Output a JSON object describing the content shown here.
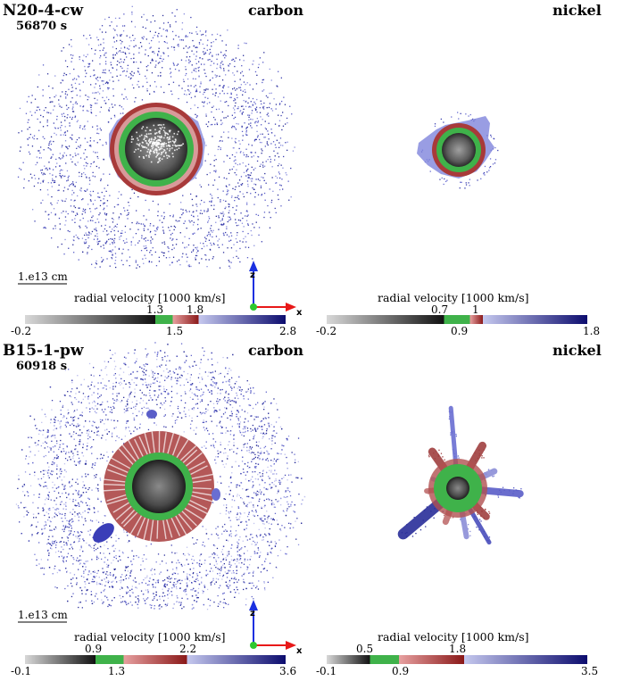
{
  "colors": {
    "gray_start": "#d8d8d8",
    "gray_end": "#111111",
    "green": "#3fb24a",
    "red_light": "#e7a0a0",
    "red_dark": "#8a1818",
    "blue_light": "#c5c8ee",
    "blue_dark": "#0c0c6e",
    "axis_z": "#1a30e0",
    "axis_x": "#e81818",
    "axis_origin": "#2ec82e"
  },
  "panels": [
    {
      "model": "N20-4-cw",
      "time": "56870 s",
      "element": "carbon",
      "scale_bar": "1.e13 cm",
      "axes": {
        "z": "z",
        "x": "x"
      },
      "colorbar": {
        "title": "radial velocity [1000 km/s]",
        "min": -0.2,
        "max": 2.8,
        "boundaries": [
          1.3,
          1.5,
          1.8
        ],
        "ticks_above": [
          "1.3",
          "1.8"
        ],
        "ticks_below": [
          "-0.2",
          "1.5",
          "2.8"
        ]
      }
    },
    {
      "element": "nickel",
      "colorbar": {
        "title": "radial velocity [1000 km/s]",
        "min": -0.2,
        "max": 1.8,
        "boundaries": [
          0.7,
          0.9,
          1.0
        ],
        "ticks_above": [
          "0.7",
          "1"
        ],
        "ticks_below": [
          "-0.2",
          "0.9",
          "1.8"
        ]
      }
    },
    {
      "model": "B15-1-pw",
      "time": "60918 s",
      "element": "carbon",
      "scale_bar": "1.e13 cm",
      "axes": {
        "z": "z",
        "x": "x"
      },
      "colorbar": {
        "title": "radial velocity [1000 km/s]",
        "min": -0.1,
        "max": 3.6,
        "boundaries": [
          0.9,
          1.3,
          2.2
        ],
        "ticks_above": [
          "0.9",
          "2.2"
        ],
        "ticks_below": [
          "-0.1",
          "1.3",
          "3.6"
        ]
      }
    },
    {
      "element": "nickel",
      "colorbar": {
        "title": "radial velocity [1000 km/s]",
        "min": -0.1,
        "max": 3.5,
        "boundaries": [
          0.5,
          0.9,
          1.8
        ],
        "ticks_above": [
          "0.5",
          "1.8"
        ],
        "ticks_below": [
          "-0.1",
          "0.9",
          "3.5"
        ]
      }
    }
  ]
}
